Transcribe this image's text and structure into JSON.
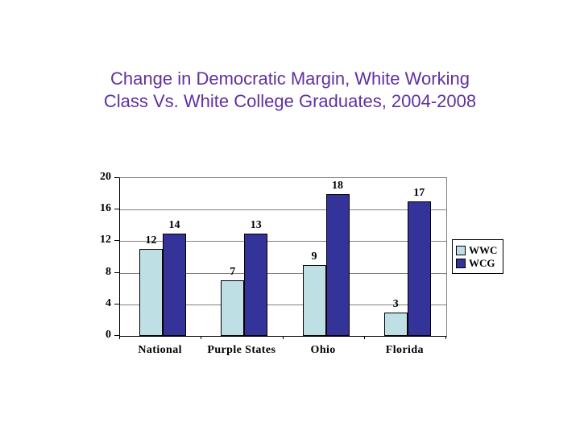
{
  "slide": {
    "background_color": "#FFFFFF",
    "title_lines": [
      "Change in Democratic Margin, White Working",
      "Class Vs. White College Graduates, 2004-2008"
    ],
    "title_color": "#6030A0"
  },
  "chart_data": {
    "type": "bar",
    "categories": [
      "National",
      "Purple States",
      "Ohio",
      "Florida"
    ],
    "series": [
      {
        "name": "WWC",
        "color": "#BEDFE4",
        "values": [
          12,
          7,
          9,
          3
        ],
        "bar_heights_as_drawn": [
          11,
          7,
          9,
          3
        ]
      },
      {
        "name": "WCG",
        "color": "#333399",
        "values": [
          14,
          13,
          18,
          17
        ],
        "bar_heights_as_drawn": [
          13,
          13,
          18,
          17
        ]
      }
    ],
    "ylim": [
      0,
      20
    ],
    "yticks": [
      "0",
      "4",
      "8",
      "12",
      "16",
      "20"
    ],
    "grid": "horizontal",
    "gridline_color": "#808080",
    "bar_outline_color": "#000000",
    "legend": {
      "position": "right",
      "entries": [
        "WWC",
        "WCG"
      ]
    }
  }
}
